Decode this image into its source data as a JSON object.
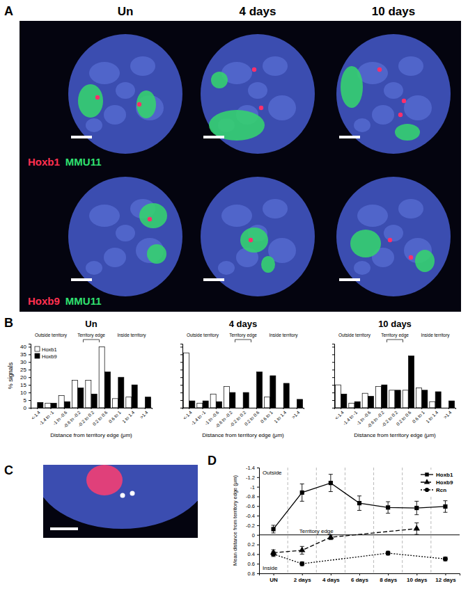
{
  "figure": {
    "panel_labels": [
      "A",
      "B",
      "C",
      "D"
    ],
    "columns": [
      "Un",
      "4 days",
      "10 days"
    ],
    "rows": [
      [
        "Hoxb1",
        "MMU11"
      ],
      [
        "Hoxb9",
        "MMU11"
      ]
    ]
  },
  "chart_data": [
    {
      "type": "bar",
      "title": "Un",
      "categories": [
        "<-1.4",
        "-1.4 to -1",
        "-1 to -0.6",
        "-0.6 to -0.2",
        "-0.2 to 0.2",
        "0.2 to 0.6",
        "0.6 to 1",
        "1 to 1.4",
        ">1.4"
      ],
      "series": [
        {
          "name": "Hoxb1",
          "color": "#ffffff",
          "values": [
            0,
            3,
            8,
            18,
            18,
            40,
            6,
            7,
            0
          ]
        },
        {
          "name": "Hoxb9",
          "color": "#000000",
          "values": [
            3.5,
            3,
            4,
            13,
            9,
            23.5,
            20,
            15,
            7
          ]
        }
      ],
      "ylim": [
        0,
        42
      ],
      "yticks": [
        0,
        5,
        10,
        15,
        20,
        25,
        30,
        35,
        40
      ],
      "ylabel": "% signals",
      "xlabel": "Distance from territory edge (μm)",
      "annotations": [
        "Outside territory",
        "Territory edge",
        "Inside territory"
      ],
      "legend": "upper left"
    },
    {
      "type": "bar",
      "title": "4 days",
      "categories": [
        "<-1.4",
        "-1.4 to -1",
        "-1 to -0.6",
        "-0.6 to -0.2",
        "-0.2 to 0.2",
        "0.2 to 0.6",
        "0.6 to 1",
        "1 to 1.4",
        ">1.4"
      ],
      "series": [
        {
          "color": "#ffffff",
          "values": [
            36,
            3,
            9,
            14,
            0,
            0,
            7,
            0,
            0
          ]
        },
        {
          "color": "#000000",
          "values": [
            4.5,
            4.5,
            4,
            10,
            10,
            23.5,
            21,
            16,
            5.5
          ]
        }
      ],
      "ylim": [
        0,
        42
      ],
      "yticks": [
        0,
        5,
        10,
        15,
        20,
        25,
        30,
        35,
        40
      ],
      "tick_labels": "x",
      "xlabel": "Distance from territory edge (μm)",
      "annotations": [
        "Outside territory",
        "Territory edge",
        "Inside territory"
      ]
    },
    {
      "type": "bar",
      "title": "10 days",
      "categories": [
        "<-1.4",
        "-1.4 to -1",
        "-1 to -0.6",
        "-0.6 to -0.2",
        "-0.2 to 0.2",
        "0.2 to 0.6",
        "0.6 to 1",
        "1 to 1.4",
        ">1.4"
      ],
      "series": [
        {
          "color": "#ffffff",
          "values": [
            15,
            3,
            9.5,
            14,
            11.5,
            11.5,
            13,
            4,
            0
          ]
        },
        {
          "color": "#000000",
          "values": [
            9,
            4,
            7.5,
            15,
            11.5,
            34,
            11.5,
            10.5,
            4.5
          ]
        }
      ],
      "ylim": [
        0,
        42
      ],
      "yticks": [
        0,
        5,
        10,
        15,
        20,
        25,
        30,
        35,
        40
      ],
      "tick_labels": "x",
      "xlabel": "Distance from territory edge (μm)",
      "annotations": [
        "Outside territory",
        "Territory edge",
        "Inside territory"
      ]
    },
    {
      "type": "line",
      "xlim": [
        -1,
        13
      ],
      "xticks": [
        {
          "value": 0,
          "label": "UN"
        },
        {
          "value": 2,
          "label": "2 days"
        },
        {
          "value": 4,
          "label": "4 days"
        },
        {
          "value": 6,
          "label": "6 days"
        },
        {
          "value": 8,
          "label": "8 days"
        },
        {
          "value": 10,
          "label": "10 days"
        },
        {
          "value": 12,
          "label": "12 days"
        }
      ],
      "ylim": [
        0.8,
        -1.4
      ],
      "yticks": [
        -1.4,
        -1.2,
        -1,
        -0.8,
        -0.6,
        -0.4,
        -0.2,
        0,
        0.2,
        0.4,
        0.6,
        0.8
      ],
      "ylabel": "Mean distance from territory edge (μm)",
      "annotations": [
        "Outside",
        "Territory edge",
        "Inside"
      ],
      "legend": "upper right",
      "series": [
        {
          "name": "Hoxb1",
          "color": "#000000",
          "marker": "square",
          "line_style": "solid",
          "x": [
            0,
            2,
            4,
            6,
            8,
            10,
            12
          ],
          "values": [
            -0.12,
            -0.88,
            -1.08,
            -0.66,
            -0.57,
            -0.56,
            -0.59
          ],
          "errors": [
            0.08,
            0.18,
            0.18,
            0.15,
            0.12,
            0.14,
            0.12
          ]
        },
        {
          "name": "Hoxb9",
          "color": "#000000",
          "marker": "triangle",
          "line_style": "dashed",
          "x": [
            0,
            2,
            4,
            10
          ],
          "values": [
            0.37,
            0.32,
            0.05,
            -0.13
          ],
          "errors": [
            0.06,
            0.08,
            0.05,
            0.12
          ]
        },
        {
          "name": "Rcn",
          "color": "#000000",
          "marker": "circle",
          "line_style": "dotted",
          "x": [
            0,
            2,
            8,
            12
          ],
          "values": [
            0.4,
            0.6,
            0.38,
            0.5
          ],
          "errors": [
            0.05,
            0.04,
            0.04,
            0.04
          ]
        }
      ]
    }
  ]
}
